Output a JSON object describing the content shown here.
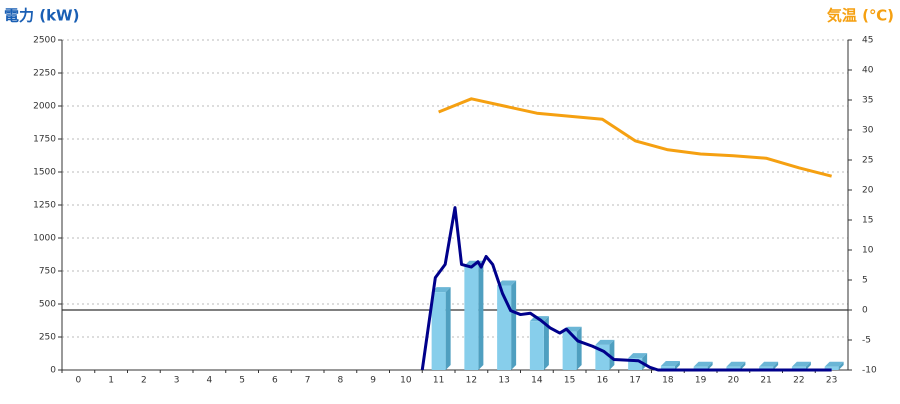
{
  "chart_data": {
    "type": "bar",
    "y_title": "電力 (kW)",
    "y2_title": "気温 (℃)",
    "categories": [
      "0",
      "1",
      "2",
      "3",
      "4",
      "5",
      "6",
      "7",
      "8",
      "9",
      "10",
      "11",
      "12",
      "13",
      "14",
      "15",
      "16",
      "17",
      "18",
      "19",
      "20",
      "21",
      "22",
      "23"
    ],
    "series": [
      {
        "type": "bar",
        "color": "#87ceeb",
        "values": [
          0,
          0,
          0,
          0,
          0,
          0,
          0,
          0,
          0,
          0,
          0,
          590,
          790,
          640,
          370,
          290,
          190,
          90,
          30,
          25,
          25,
          25,
          25,
          25
        ]
      },
      {
        "type": "line",
        "color": "#00008b",
        "x": [
          10.5,
          10.9,
          11.2,
          11.5,
          11.7,
          12.0,
          12.2,
          12.3,
          12.45,
          12.65,
          12.95,
          13.2,
          13.5,
          13.8,
          14.1,
          14.4,
          14.7,
          14.9,
          15.25,
          15.7,
          16.05,
          16.35,
          17.1,
          17.45,
          17.7,
          23.0
        ],
        "values": [
          0,
          700,
          800,
          1230,
          800,
          780,
          820,
          780,
          860,
          800,
          580,
          450,
          420,
          430,
          380,
          320,
          280,
          310,
          220,
          180,
          140,
          80,
          70,
          20,
          0,
          0
        ]
      },
      {
        "type": "line",
        "color": "#f5a011",
        "axis": "y2",
        "values": [
          null,
          null,
          null,
          null,
          null,
          null,
          null,
          null,
          null,
          null,
          null,
          33,
          35.2,
          34,
          32.8,
          32.3,
          31.8,
          28.2,
          26.7,
          26,
          25.7,
          25.3,
          23.7,
          22.3
        ]
      }
    ],
    "ylim": [
      0,
      2500
    ],
    "yticks": [
      0,
      250,
      500,
      750,
      1000,
      1250,
      1500,
      1750,
      2000,
      2250,
      2500
    ],
    "y2lim": [
      -10,
      45
    ],
    "y2ticks": [
      -10,
      -5,
      0,
      5,
      10,
      15,
      20,
      25,
      30,
      35,
      40,
      45
    ],
    "grid": true,
    "y2_zero_line": true
  }
}
